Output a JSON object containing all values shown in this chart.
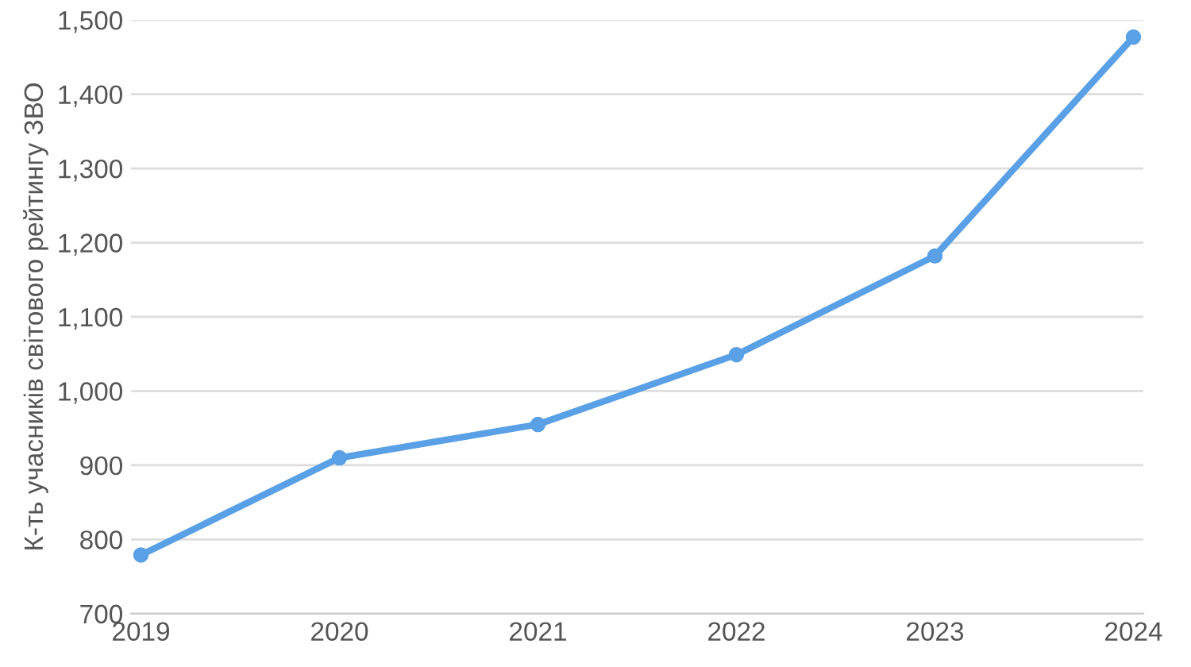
{
  "chart_data": {
    "type": "line",
    "ylabel": "К-ть учасників світового рейтингу ЗВО",
    "categories": [
      "2019",
      "2020",
      "2021",
      "2022",
      "2023",
      "2024"
    ],
    "series": [
      {
        "color": "#59a0e6",
        "values": [
          779,
          910,
          955,
          1049,
          1182,
          1477
        ]
      }
    ],
    "ylim": [
      700,
      1500
    ],
    "yticks": [
      {
        "value": 700,
        "label": "700"
      },
      {
        "value": 800,
        "label": "800"
      },
      {
        "value": 900,
        "label": "900"
      },
      {
        "value": 1000,
        "label": "1,000"
      },
      {
        "value": 1100,
        "label": "1,100"
      },
      {
        "value": 1200,
        "label": "1,200"
      },
      {
        "value": 1300,
        "label": "1,300"
      },
      {
        "value": 1400,
        "label": "1,400"
      },
      {
        "value": 1500,
        "label": "1,500"
      }
    ],
    "grid": "y",
    "marker": "circle",
    "line_style": "solid"
  }
}
